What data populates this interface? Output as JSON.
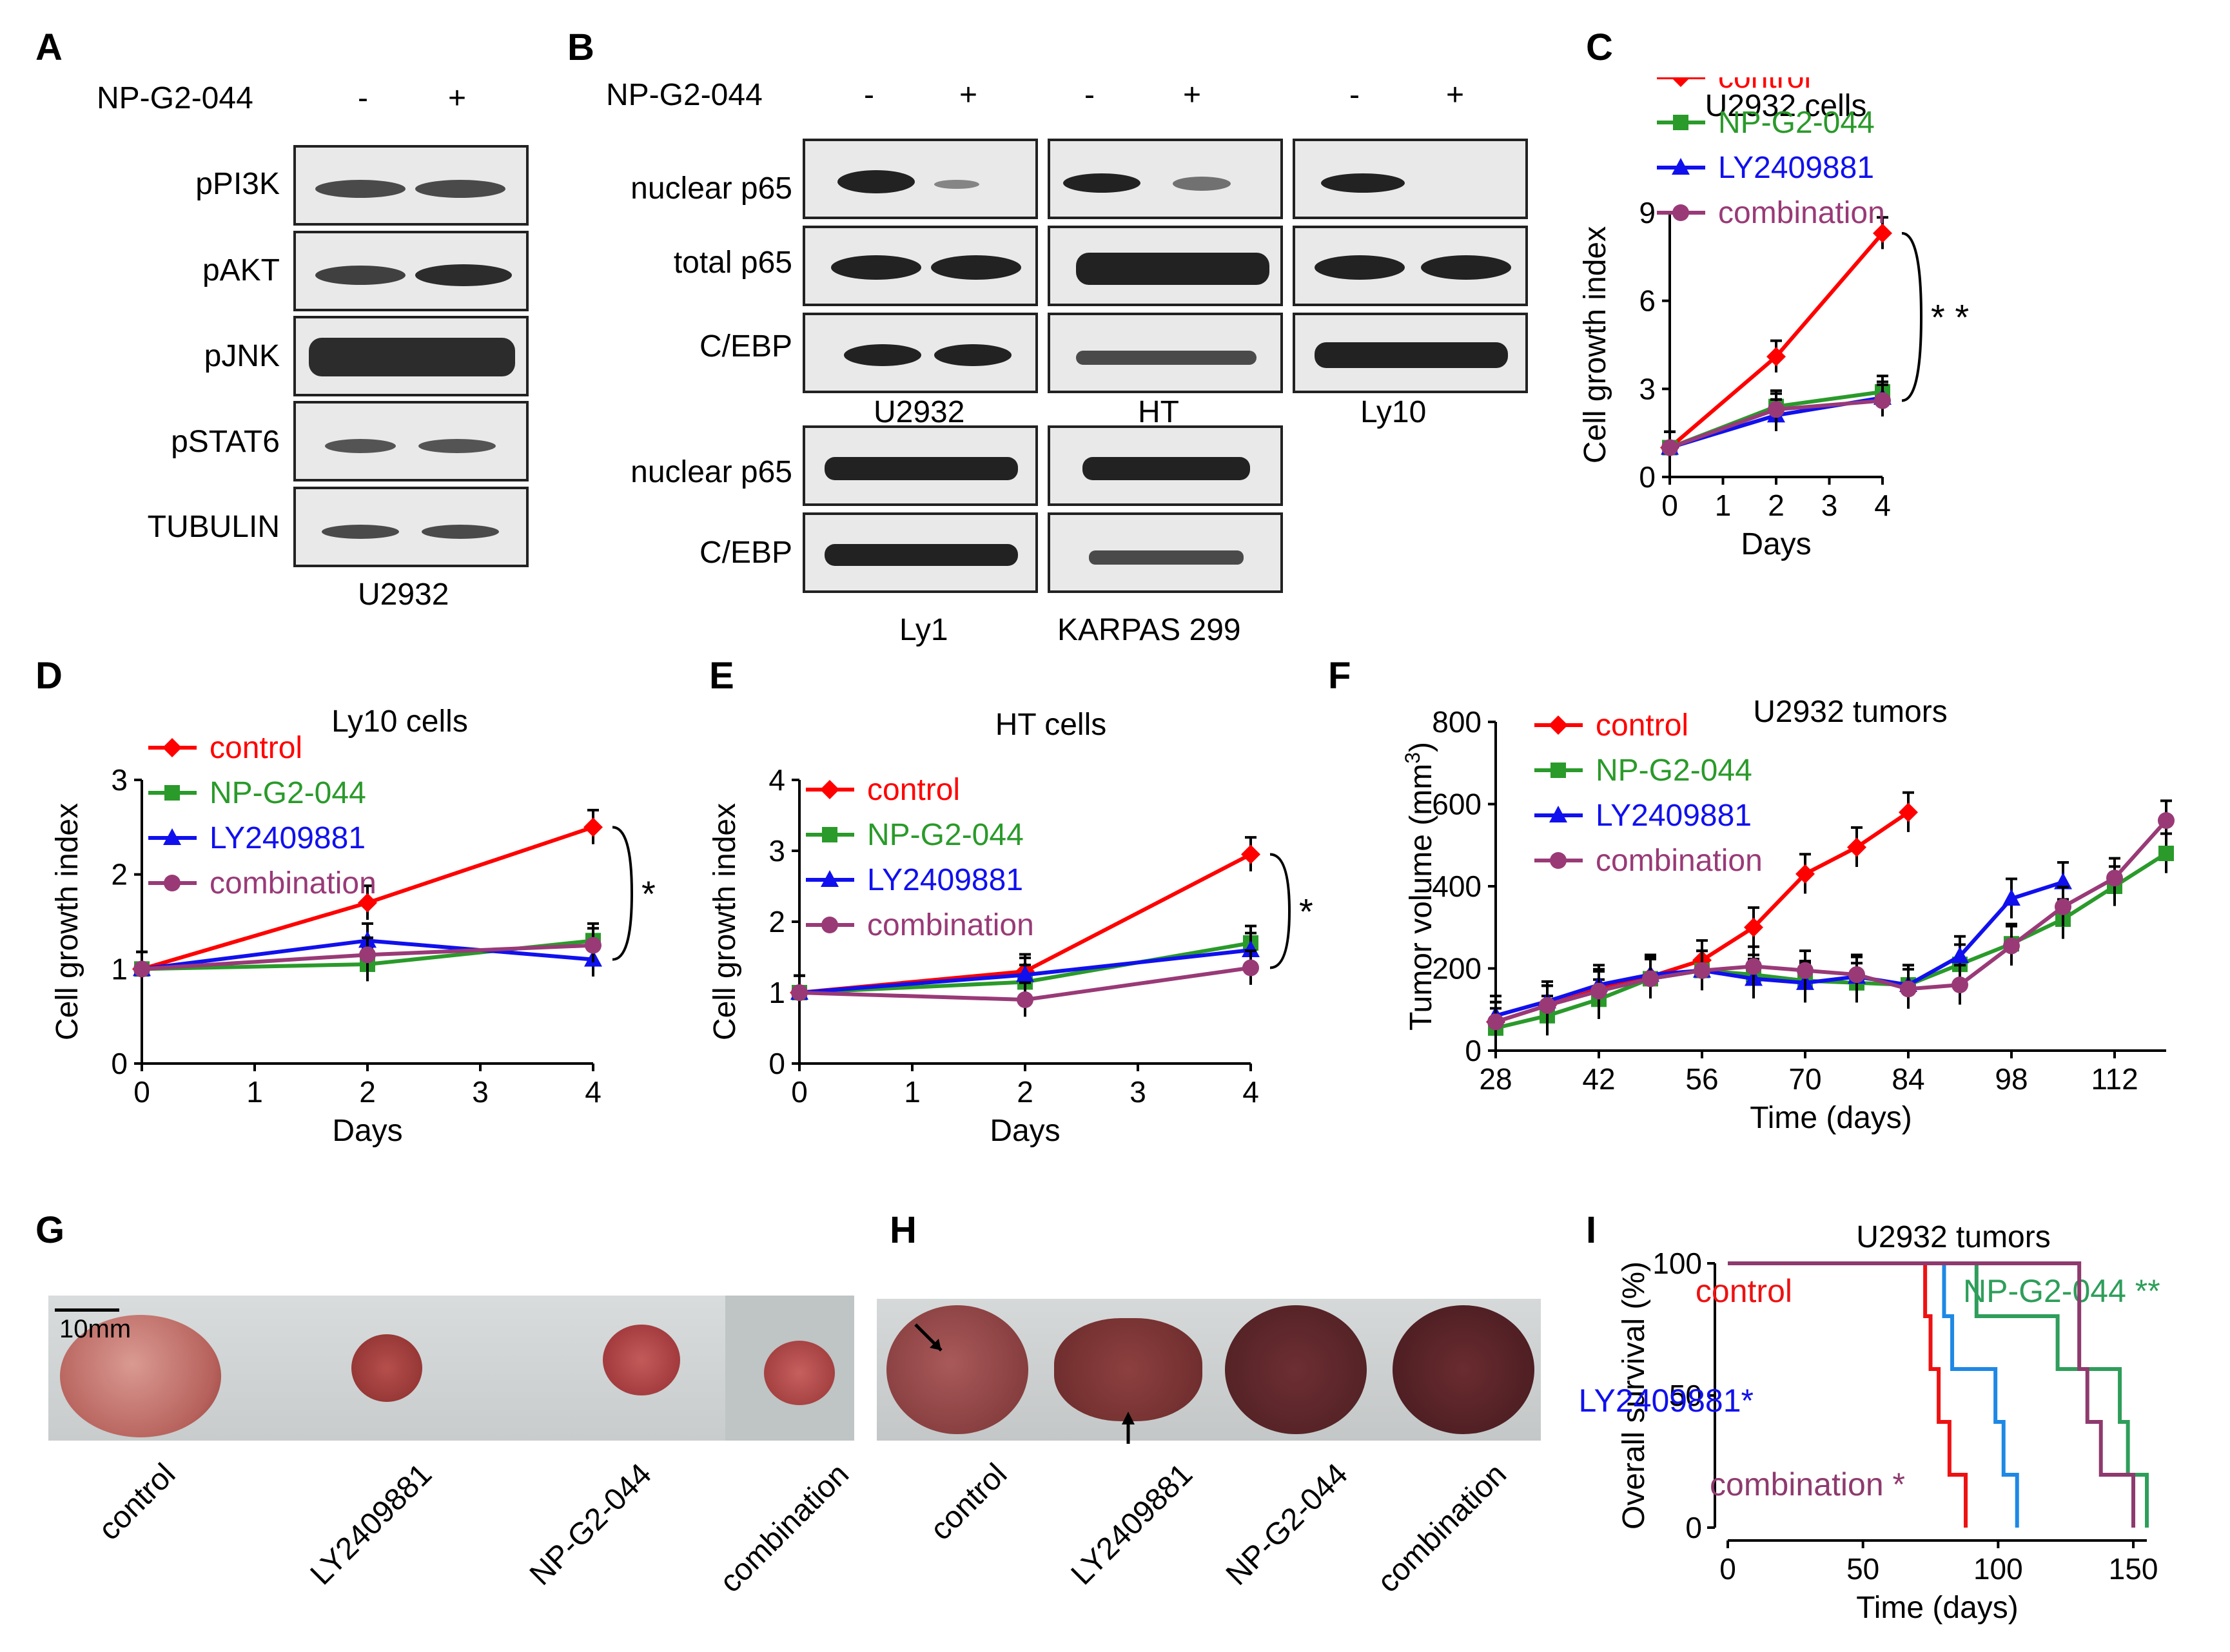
{
  "panel_letters": {
    "a": "A",
    "b": "B",
    "c": "C",
    "d": "D",
    "e": "E",
    "f": "F",
    "g": "G",
    "h": "H",
    "i": "I"
  },
  "panelA": {
    "treatment": "NP-G2-044",
    "minus": "-",
    "plus": "+",
    "rows": [
      "pPI3K",
      "pAKT",
      "pJNK",
      "pSTAT6",
      "TUBULIN"
    ],
    "cell_line": "U2932"
  },
  "panelB": {
    "treatment": "NP-G2-044",
    "minus": "-",
    "plus": "+",
    "top_rows": [
      "nuclear p65",
      "total p65",
      "C/EBP"
    ],
    "top_lines": [
      "U2932",
      "HT",
      "Ly10"
    ],
    "bottom_rows": [
      "nuclear p65",
      "C/EBP"
    ],
    "bottom_lines": [
      "Ly1",
      "KARPAS 299"
    ]
  },
  "colors": {
    "control": "#ff0000",
    "np": "#2a9a2a",
    "ly": "#1010ee",
    "combo": "#993a77",
    "ctrl_surv": "#ee1111",
    "ly_surv": "#1e88e5",
    "np_surv": "#2e9e5a",
    "combo_surv": "#8e3a6e"
  },
  "chart_data": [
    {
      "panel": "C",
      "type": "line",
      "title": "U2932 cells",
      "xlabel": "Days",
      "ylabel": "Cell growth index",
      "x": [
        0,
        2,
        4
      ],
      "xlim": [
        0,
        4
      ],
      "ylim": [
        0,
        9
      ],
      "xticks": [
        "0",
        "1",
        "2",
        "3",
        "4"
      ],
      "yticks": [
        "0",
        "3",
        "6",
        "9"
      ],
      "legend": [
        "control",
        "NP-G2-044",
        "LY2409881",
        "combination"
      ],
      "series": [
        {
          "name": "control",
          "values": [
            1,
            4.1,
            8.3
          ]
        },
        {
          "name": "NP-G2-044",
          "values": [
            1,
            2.4,
            2.9
          ]
        },
        {
          "name": "LY2409881",
          "values": [
            1,
            2.1,
            2.7
          ]
        },
        {
          "name": "combination",
          "values": [
            1,
            2.3,
            2.6
          ]
        }
      ],
      "significance": "* *"
    },
    {
      "panel": "D",
      "type": "line",
      "title": "Ly10 cells",
      "xlabel": "Days",
      "ylabel": "Cell growth index",
      "x": [
        0,
        2,
        4
      ],
      "xlim": [
        0,
        4
      ],
      "ylim": [
        0,
        3
      ],
      "xticks": [
        "0",
        "1",
        "2",
        "3",
        "4"
      ],
      "yticks": [
        "0",
        "1",
        "2",
        "3"
      ],
      "legend": [
        "control",
        "NP-G2-044",
        "LY2409881",
        "combination"
      ],
      "series": [
        {
          "name": "control",
          "values": [
            1,
            1.7,
            2.5
          ]
        },
        {
          "name": "NP-G2-044",
          "values": [
            1,
            1.05,
            1.3
          ]
        },
        {
          "name": "LY2409881",
          "values": [
            1,
            1.3,
            1.1
          ]
        },
        {
          "name": "combination",
          "values": [
            1,
            1.15,
            1.25
          ]
        }
      ],
      "significance": "*"
    },
    {
      "panel": "E",
      "type": "line",
      "title": "HT cells",
      "xlabel": "Days",
      "ylabel": "Cell growth index",
      "x": [
        0,
        2,
        4
      ],
      "xlim": [
        0,
        4
      ],
      "ylim": [
        0,
        4
      ],
      "xticks": [
        "0",
        "1",
        "2",
        "3",
        "4"
      ],
      "yticks": [
        "0",
        "1",
        "2",
        "3",
        "4"
      ],
      "legend": [
        "control",
        "NP-G2-044",
        "LY2409881",
        "combination"
      ],
      "series": [
        {
          "name": "control",
          "values": [
            1,
            1.3,
            2.95
          ]
        },
        {
          "name": "NP-G2-044",
          "values": [
            1,
            1.15,
            1.7
          ]
        },
        {
          "name": "LY2409881",
          "values": [
            1,
            1.25,
            1.6
          ]
        },
        {
          "name": "combination",
          "values": [
            1,
            0.9,
            1.35
          ]
        }
      ],
      "significance": "*"
    },
    {
      "panel": "F",
      "type": "line",
      "title": "U2932 tumors",
      "xlabel": "Time (days)",
      "ylabel": "Tumor volume (mm",
      "ylabel_sup": "3",
      "ylabel_end": ")",
      "xlim": [
        28,
        119
      ],
      "ylim": [
        0,
        800
      ],
      "xticks": [
        "28",
        "42",
        "56",
        "70",
        "84",
        "98",
        "112"
      ],
      "yticks": [
        "0",
        "200",
        "400",
        "600",
        "800"
      ],
      "legend": [
        "control",
        "NP-G2-044",
        "LY2409881",
        "combination"
      ],
      "series": [
        {
          "name": "control",
          "x": [
            28,
            35,
            42,
            49,
            56,
            63,
            70,
            77,
            84
          ],
          "values": [
            70,
            110,
            150,
            180,
            220,
            300,
            430,
            495,
            580
          ]
        },
        {
          "name": "NP-G2-044",
          "x": [
            28,
            35,
            42,
            49,
            56,
            63,
            70,
            77,
            84,
            91,
            98,
            105,
            112,
            119
          ],
          "values": [
            55,
            85,
            125,
            175,
            195,
            185,
            170,
            165,
            160,
            210,
            260,
            320,
            400,
            480
          ]
        },
        {
          "name": "LY2409881",
          "x": [
            28,
            35,
            42,
            49,
            56,
            63,
            70,
            77,
            84,
            91,
            98,
            105
          ],
          "values": [
            85,
            120,
            160,
            185,
            195,
            175,
            165,
            180,
            160,
            230,
            370,
            410
          ]
        },
        {
          "name": "combination",
          "x": [
            28,
            35,
            42,
            49,
            56,
            63,
            70,
            77,
            84,
            91,
            98,
            105,
            112,
            119
          ],
          "values": [
            70,
            110,
            145,
            175,
            195,
            205,
            195,
            185,
            150,
            160,
            255,
            350,
            420,
            560
          ]
        }
      ]
    },
    {
      "panel": "I",
      "type": "line",
      "title": "U2932 tumors",
      "xlabel": "Time (days)",
      "ylabel": "Overall survival (%)",
      "xlim": [
        0,
        155
      ],
      "ylim": [
        0,
        100
      ],
      "xticks": [
        "0",
        "50",
        "100",
        "150"
      ],
      "yticks": [
        "0",
        "50",
        "100"
      ],
      "series": [
        {
          "name": "control",
          "label": "control",
          "x": [
            0,
            73,
            73,
            75,
            75,
            78,
            78,
            82,
            82,
            88,
            88
          ],
          "values": [
            100,
            100,
            80,
            80,
            60,
            60,
            40,
            40,
            20,
            20,
            0
          ]
        },
        {
          "name": "LY2409881",
          "label": "LY2409881*",
          "x": [
            0,
            80,
            80,
            83,
            83,
            99,
            99,
            102,
            102,
            107,
            107
          ],
          "values": [
            100,
            100,
            80,
            80,
            60,
            60,
            40,
            40,
            20,
            20,
            0
          ]
        },
        {
          "name": "NP-G2-044",
          "label": "NP-G2-044 **",
          "x": [
            0,
            92,
            92,
            122,
            122,
            145,
            145,
            148,
            148,
            155,
            155
          ],
          "values": [
            100,
            100,
            80,
            80,
            60,
            60,
            40,
            40,
            20,
            20,
            0
          ]
        },
        {
          "name": "combination",
          "label": "combination *",
          "x": [
            0,
            130,
            130,
            133,
            133,
            138,
            138,
            150,
            150
          ],
          "values": [
            100,
            100,
            60,
            60,
            40,
            40,
            20,
            20,
            0
          ]
        }
      ]
    }
  ],
  "panelG": {
    "scale": "10mm",
    "labels": [
      "control",
      "LY2409881",
      "NP-G2-044",
      "combination"
    ]
  },
  "panelH": {
    "labels": [
      "control",
      "LY2409881",
      "NP-G2-044",
      "combination"
    ]
  }
}
